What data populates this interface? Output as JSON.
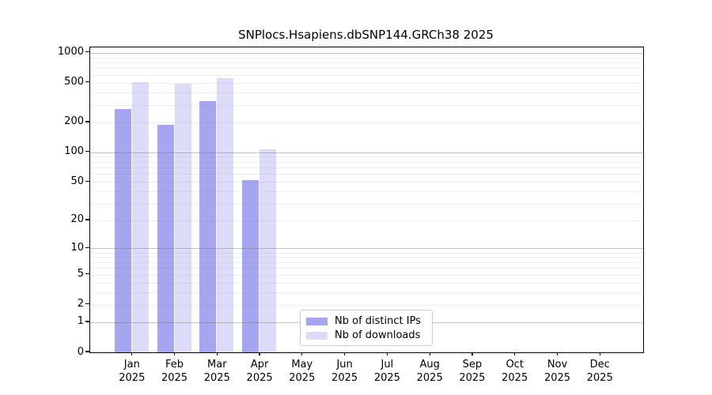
{
  "title": "SNPlocs.Hsapiens.dbSNP144.GRCh38 2025",
  "chart_data": {
    "type": "bar",
    "title": "SNPlocs.Hsapiens.dbSNP144.GRCh38 2025",
    "categories": [
      "Jan 2025",
      "Feb 2025",
      "Mar 2025",
      "Apr 2025",
      "May 2025",
      "Jun 2025",
      "Jul 2025",
      "Aug 2025",
      "Sep 2025",
      "Oct 2025",
      "Nov 2025",
      "Dec 2025"
    ],
    "x_months": [
      "Jan",
      "Feb",
      "Mar",
      "Apr",
      "May",
      "Jun",
      "Jul",
      "Aug",
      "Sep",
      "Oct",
      "Nov",
      "Dec"
    ],
    "x_year": "2025",
    "series": [
      {
        "name": "Nb of distinct IPs",
        "color": "#a5a5f2",
        "values": [
          273,
          188,
          330,
          52,
          0,
          0,
          0,
          0,
          0,
          0,
          0,
          0
        ]
      },
      {
        "name": "Nb of downloads",
        "color": "#dcdcfa",
        "values": [
          505,
          490,
          560,
          108,
          0,
          0,
          0,
          0,
          0,
          0,
          0,
          0
        ]
      }
    ],
    "yscale": "log1p",
    "ylim": [
      0,
      1100
    ],
    "yticks": [
      0,
      1,
      2,
      5,
      10,
      20,
      50,
      100,
      200,
      500,
      1000
    ],
    "grid": "on",
    "grid_major_at": [
      1,
      10,
      100,
      1000
    ],
    "legend_position": "inside-bottom-center"
  }
}
